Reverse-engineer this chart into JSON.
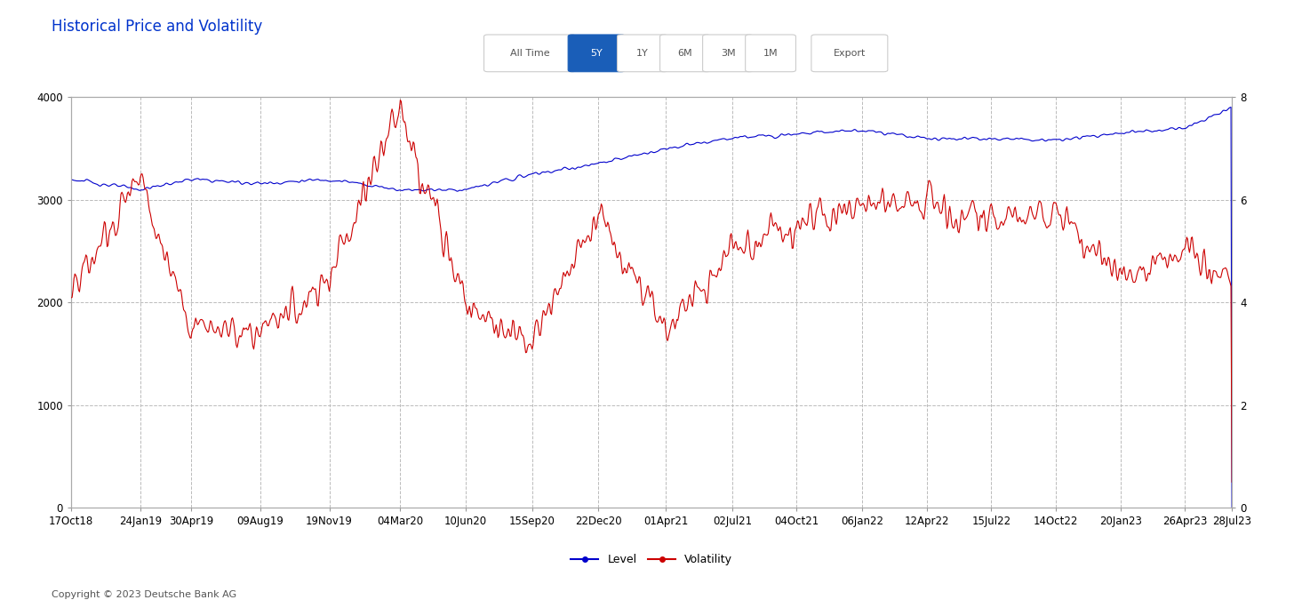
{
  "title": "Historical Price and Volatility",
  "title_color": "#0033cc",
  "title_fontsize": 12,
  "left_ylim": [
    0,
    4000
  ],
  "right_ylim": [
    0,
    8
  ],
  "left_yticks": [
    0,
    1000,
    2000,
    3000,
    4000
  ],
  "right_yticks": [
    0,
    2,
    4,
    6,
    8
  ],
  "xlabel_dates": [
    "17Oct18",
    "24Jan19",
    "30Apr19",
    "09Aug19",
    "19Nov19",
    "04Mar20",
    "10Jun20",
    "15Sep20",
    "22Dec20",
    "01Apr21",
    "02Jul21",
    "04Oct21",
    "06Jan22",
    "12Apr22",
    "15Jul22",
    "14Oct22",
    "20Jan23",
    "26Apr23",
    "28Jul23"
  ],
  "legend_level_label": "Level",
  "legend_volatility_label": "Volatility",
  "legend_level_color": "#0000cc",
  "legend_volatility_color": "#cc0000",
  "grid_color": "#bbbbbb",
  "grid_linestyle": "--",
  "copyright_text": "Copyright © 2023 Deutsche Bank AG",
  "button_labels": [
    "All Time",
    "5Y",
    "1Y",
    "6M",
    "3M",
    "1M",
    "Export"
  ],
  "active_button": "5Y",
  "active_button_color": "#1a5eb8",
  "button_text_color": "#555555",
  "button_border_color": "#cccccc"
}
